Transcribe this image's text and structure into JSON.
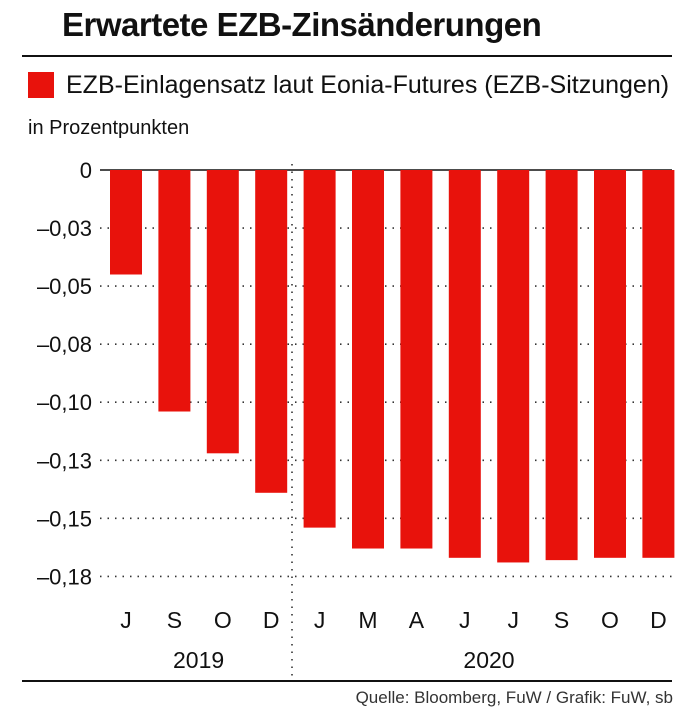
{
  "title": "Erwartete EZB-Zinsänderungen",
  "legend": {
    "label": "EZB-Einlagensatz laut Eonia-Futures (EZB-Sitzungen)"
  },
  "unit_label": "in Prozentpunkten",
  "source": "Quelle: Bloomberg, FuW / Grafik: FuW, sb",
  "colors": {
    "bar": "#e8120c",
    "text": "#111111"
  },
  "chart_data": {
    "type": "bar",
    "categories": [
      "J",
      "S",
      "O",
      "D",
      "J",
      "M",
      "A",
      "J",
      "J",
      "S",
      "O",
      "D"
    ],
    "year_groups": [
      {
        "label": "2019",
        "count": 4
      },
      {
        "label": "2020",
        "count": 8
      }
    ],
    "values": [
      -0.045,
      -0.104,
      -0.122,
      -0.139,
      -0.154,
      -0.163,
      -0.163,
      -0.167,
      -0.169,
      -0.168,
      -0.167,
      -0.167
    ],
    "ylim": [
      -0.18,
      0
    ],
    "yticks": [
      0,
      -0.025,
      -0.05,
      -0.075,
      -0.1,
      -0.125,
      -0.15,
      -0.175
    ],
    "ytick_labels": [
      "0",
      "–0,03",
      "–0,05",
      "–0,08",
      "–0,10",
      "–0,13",
      "–0,15",
      "–0,18"
    ],
    "grid": "dotted"
  }
}
